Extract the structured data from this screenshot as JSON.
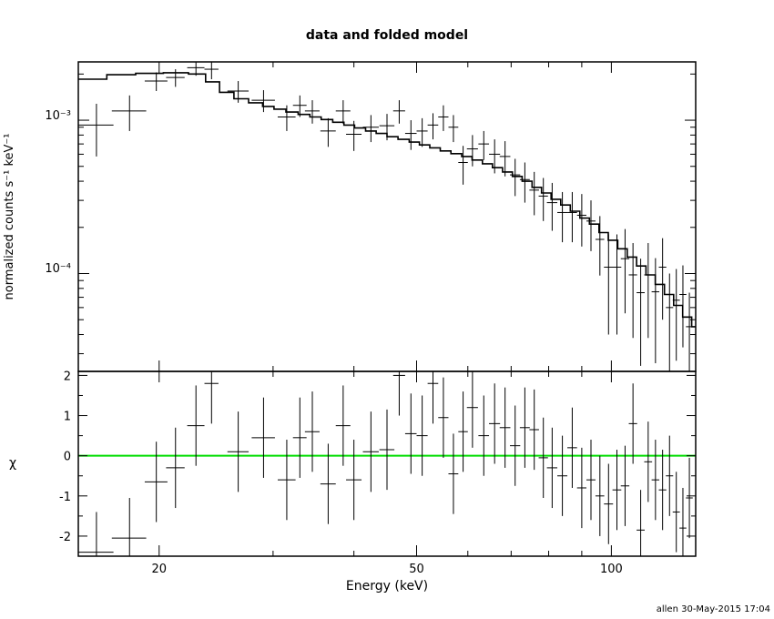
{
  "chart_data": [
    {
      "panel": "top",
      "type": "line",
      "title": "data and folded model",
      "ylabel": "normalized counts s⁻¹ keV⁻¹",
      "xscale": "log",
      "yscale": "log",
      "xlim": [
        15,
        135
      ],
      "ylim": [
        2.3e-05,
        0.0024
      ],
      "y_tick_labels": [
        "10⁻³",
        "10⁻⁴"
      ],
      "series": [
        {
          "kind": "step-model",
          "x_edges": [
            15.0,
            16.6,
            18.4,
            20.3,
            22.2,
            23.6,
            24.8,
            26.1,
            27.5,
            28.9,
            30.1,
            31.4,
            32.8,
            34.2,
            35.6,
            37.1,
            38.6,
            40.1,
            41.7,
            43.3,
            45.0,
            46.8,
            48.7,
            50.5,
            52.4,
            54.4,
            56.5,
            58.7,
            60.9,
            63.2,
            65.5,
            67.9,
            70.3,
            72.8,
            75.4,
            78.0,
            80.7,
            83.5,
            86.4,
            89.4,
            92.5,
            95.7,
            98.9,
            102.3,
            105.8,
            109.4,
            113.1,
            116.9,
            120.8,
            124.8,
            128.9,
            133.1,
            135.0
          ],
          "values": [
            0.00185,
            0.00198,
            0.00202,
            0.00204,
            0.002,
            0.00178,
            0.00152,
            0.00138,
            0.0013,
            0.00123,
            0.00118,
            0.00113,
            0.00109,
            0.00105,
            0.00101,
            0.00097,
            0.00093,
            0.00089,
            0.00085,
            0.00082,
            0.00078,
            0.00075,
            0.00072,
            0.00069,
            0.00066,
            0.00063,
            0.000605,
            0.00058,
            0.00055,
            0.00052,
            0.00049,
            0.00046,
            0.00043,
            0.0004,
            0.000365,
            0.000335,
            0.000305,
            0.00028,
            0.000255,
            0.00023,
            0.00021,
            0.000185,
            0.000165,
            0.000145,
            0.000128,
            0.000112,
            9.8e-05,
            8.5e-05,
            7.3e-05,
            6.2e-05,
            5.2e-05,
            4.5e-05
          ]
        },
        {
          "kind": "data-with-errors",
          "x": [
            16.0,
            18.0,
            19.8,
            21.2,
            22.8,
            24.1,
            26.5,
            29.0,
            31.5,
            33.0,
            34.5,
            36.5,
            38.5,
            40.0,
            42.5,
            45.0,
            47.0,
            49.0,
            51.0,
            53.0,
            55.0,
            57.0,
            59.0,
            61.0,
            63.5,
            66.0,
            68.5,
            71.0,
            73.5,
            76.0,
            78.5,
            81.0,
            84.0,
            87.0,
            90.0,
            93.0,
            96.0,
            99.0,
            102.0,
            105.0,
            108.0,
            111.0,
            114.0,
            117.0,
            120.0,
            123.0,
            126.0,
            129.0,
            132.0
          ],
          "xerr": [
            1.0,
            1.1,
            0.8,
            0.7,
            0.7,
            0.6,
            1.0,
            1.2,
            1.0,
            0.8,
            0.9,
            1.0,
            1.0,
            1.1,
            1.2,
            1.2,
            1.0,
            1.0,
            1.0,
            1.0,
            1.0,
            1.0,
            1.0,
            1.2,
            1.2,
            1.3,
            1.3,
            1.3,
            1.3,
            1.3,
            1.3,
            1.5,
            1.5,
            1.5,
            1.5,
            1.5,
            1.5,
            1.6,
            1.6,
            1.6,
            1.6,
            1.6,
            1.6,
            1.6,
            1.6,
            1.6,
            1.6,
            1.6,
            1.6
          ],
          "y": [
            0.00093,
            0.00115,
            0.0018,
            0.0019,
            0.0022,
            0.00215,
            0.00155,
            0.00135,
            0.00105,
            0.00125,
            0.00115,
            0.00085,
            0.00115,
            0.00081,
            0.0009,
            0.00092,
            0.00115,
            0.00082,
            0.00085,
            0.00093,
            0.00105,
            0.0009,
            0.00053,
            0.00065,
            0.0007,
            0.0006,
            0.00058,
            0.00044,
            0.00041,
            0.00035,
            0.00032,
            0.00029,
            0.00025,
            0.00025,
            0.00024,
            0.00022,
            0.000167,
            0.00011,
            0.00011,
            0.000125,
            9.8e-05,
            7.5e-05,
            9.8e-05,
            7.6e-05,
            0.00011,
            6e-05,
            6.7e-05,
            7.3e-05,
            4.5e-05
          ],
          "yerr": [
            0.00035,
            0.0003,
            0.00025,
            0.00025,
            0.00025,
            0.0003,
            0.00025,
            0.00022,
            0.0002,
            0.0002,
            0.0002,
            0.00018,
            0.0002,
            0.00018,
            0.00018,
            0.00018,
            0.0002,
            0.00018,
            0.00018,
            0.00018,
            0.0002,
            0.00018,
            0.00015,
            0.00015,
            0.00015,
            0.00015,
            0.00015,
            0.00012,
            0.00012,
            0.00011,
            0.0001,
            0.0001,
            9e-05,
            9e-05,
            9e-05,
            8e-05,
            7e-05,
            7e-05,
            7e-05,
            7e-05,
            6e-05,
            5e-05,
            6e-05,
            5e-05,
            6e-05,
            4e-05,
            4e-05,
            4e-05,
            3e-05
          ]
        }
      ]
    },
    {
      "panel": "bottom",
      "type": "scatter",
      "xlabel": "Energy (keV)",
      "ylabel": "χ",
      "xscale": "log",
      "xlim": [
        15,
        135
      ],
      "ylim": [
        -2.5,
        2.1
      ],
      "x_ticks": [
        20,
        50,
        100
      ],
      "y_ticks": [
        -2,
        -1,
        0,
        1,
        2
      ],
      "reference_line": {
        "y": 0,
        "color": "#00dd00"
      },
      "series": [
        {
          "kind": "residuals",
          "x": [
            16.0,
            18.0,
            19.8,
            21.2,
            22.8,
            24.1,
            26.5,
            29.0,
            31.5,
            33.0,
            34.5,
            36.5,
            38.5,
            40.0,
            42.5,
            45.0,
            47.0,
            49.0,
            51.0,
            53.0,
            55.0,
            57.0,
            59.0,
            61.0,
            63.5,
            66.0,
            68.5,
            71.0,
            73.5,
            76.0,
            78.5,
            81.0,
            84.0,
            87.0,
            90.0,
            93.0,
            96.0,
            99.0,
            102.0,
            105.0,
            108.0,
            111.0,
            114.0,
            117.0,
            120.0,
            123.0,
            126.0,
            129.0,
            132.0
          ],
          "xerr": [
            1.0,
            1.1,
            0.8,
            0.7,
            0.7,
            0.6,
            1.0,
            1.2,
            1.0,
            0.8,
            0.9,
            1.0,
            1.0,
            1.1,
            1.2,
            1.2,
            1.0,
            1.0,
            1.0,
            1.0,
            1.0,
            1.0,
            1.0,
            1.2,
            1.2,
            1.3,
            1.3,
            1.3,
            1.3,
            1.3,
            1.3,
            1.5,
            1.5,
            1.5,
            1.5,
            1.5,
            1.5,
            1.6,
            1.6,
            1.6,
            1.6,
            1.6,
            1.6,
            1.6,
            1.6,
            1.6,
            1.6,
            1.6,
            1.6
          ],
          "y": [
            -2.4,
            -2.05,
            -0.65,
            -0.3,
            0.75,
            1.8,
            0.1,
            0.45,
            -0.6,
            0.45,
            0.6,
            -0.7,
            0.75,
            -0.6,
            0.1,
            0.15,
            2.0,
            0.55,
            0.5,
            1.8,
            0.95,
            -0.45,
            0.6,
            1.2,
            0.5,
            0.8,
            0.7,
            0.25,
            0.7,
            0.65,
            -0.05,
            -0.3,
            -0.5,
            0.2,
            -0.8,
            -0.6,
            -1.0,
            -1.2,
            -0.85,
            -0.75,
            0.8,
            -1.85,
            -0.15,
            -0.6,
            -0.85,
            -0.5,
            -1.4,
            -1.8,
            -1.05
          ],
          "yerr": [
            1.0,
            1.0,
            1.0,
            1.0,
            1.0,
            1.0,
            1.0,
            1.0,
            1.0,
            1.0,
            1.0,
            1.0,
            1.0,
            1.0,
            1.0,
            1.0,
            1.0,
            1.0,
            1.0,
            1.0,
            1.0,
            1.0,
            1.0,
            1.0,
            1.0,
            1.0,
            1.0,
            1.0,
            1.0,
            1.0,
            1.0,
            1.0,
            1.0,
            1.0,
            1.0,
            1.0,
            1.0,
            1.0,
            1.0,
            1.0,
            1.0,
            1.0,
            1.0,
            1.0,
            1.0,
            1.0,
            1.0,
            1.0,
            1.0
          ]
        }
      ]
    }
  ],
  "footer": "allen 30-May-2015 17:04"
}
